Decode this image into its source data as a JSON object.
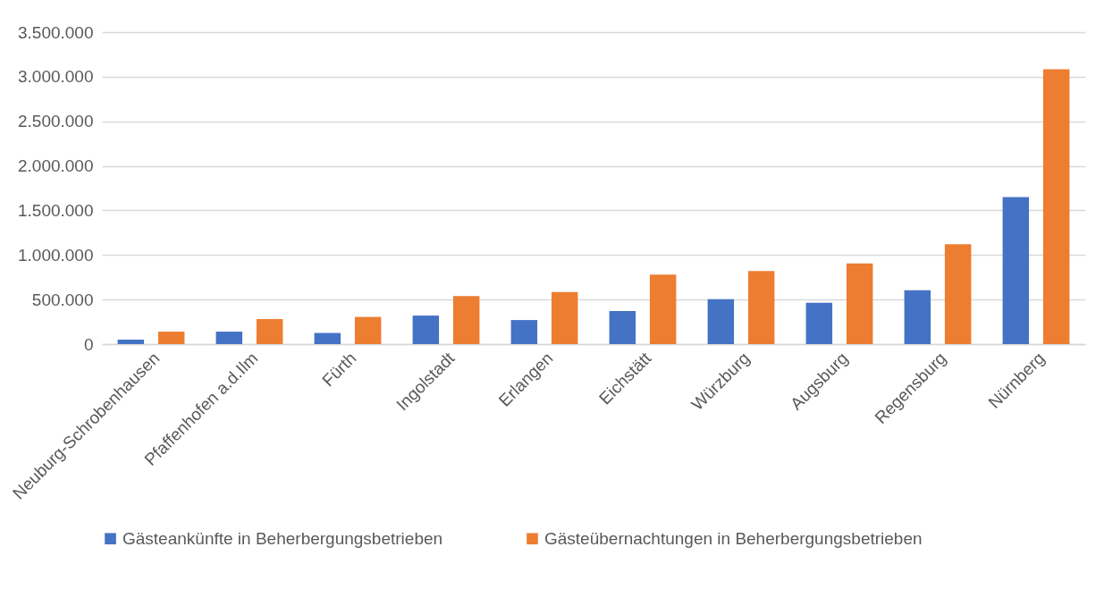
{
  "chart_data": {
    "type": "bar",
    "categories": [
      "Neuburg-Schrobenhausen",
      "Pfaffenhofen a.d.Ilm",
      "Fürth",
      "Ingolstadt",
      "Erlangen",
      "Eichstätt",
      "Würzburg",
      "Augsburg",
      "Regensburg",
      "Nürnberg"
    ],
    "series": [
      {
        "name": "Gästeankünfte in Beherbergungsbetrieben",
        "color": "#4472c4",
        "values": [
          50000,
          140000,
          125000,
          320000,
          270000,
          370000,
          505000,
          465000,
          605000,
          1650000
        ]
      },
      {
        "name": "Gästeübernachtungen in Beherbergungsbetrieben",
        "color": "#ed7d31",
        "values": [
          140000,
          280000,
          305000,
          540000,
          585000,
          780000,
          820000,
          905000,
          1120000,
          3085000
        ]
      }
    ],
    "ylim": [
      0,
      3500000
    ],
    "yticks": [
      {
        "value": 0,
        "label": "0"
      },
      {
        "value": 500000,
        "label": "500.000"
      },
      {
        "value": 1000000,
        "label": "1.000.000"
      },
      {
        "value": 1500000,
        "label": "1.500.000"
      },
      {
        "value": 2000000,
        "label": "2.000.000"
      },
      {
        "value": 2500000,
        "label": "2.500.000"
      },
      {
        "value": 3000000,
        "label": "3.000.000"
      },
      {
        "value": 3500000,
        "label": "3.500.000"
      }
    ],
    "grid": "y",
    "legend": "bottom"
  }
}
